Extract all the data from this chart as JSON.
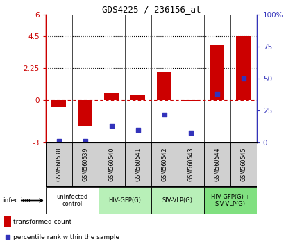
{
  "title": "GDS4225 / 236156_at",
  "samples": [
    "GSM560538",
    "GSM560539",
    "GSM560540",
    "GSM560541",
    "GSM560542",
    "GSM560543",
    "GSM560544",
    "GSM560545"
  ],
  "red_bars": [
    -0.5,
    -1.8,
    0.5,
    0.35,
    2.0,
    -0.05,
    3.85,
    4.5
  ],
  "blue_pct": [
    1.0,
    1.0,
    13.0,
    10.0,
    22.0,
    8.0,
    38.0,
    50.0
  ],
  "ylim_left": [
    -3,
    6
  ],
  "ylim_right": [
    0,
    100
  ],
  "left_yticks": [
    -3,
    0,
    2.25,
    4.5,
    6
  ],
  "left_ytick_labels": [
    "-3",
    "0",
    "2.25",
    "4.5",
    "6"
  ],
  "right_yticks": [
    0,
    25,
    50,
    75,
    100
  ],
  "right_ytick_labels": [
    "0",
    "25",
    "50",
    "75",
    "100%"
  ],
  "hline_dotted": [
    4.5,
    2.25
  ],
  "hline_dashed": 0,
  "groups": [
    {
      "label": "uninfected\ncontrol",
      "start": 0,
      "end": 1,
      "color": "#ffffff"
    },
    {
      "label": "HIV-GFP(G)",
      "start": 2,
      "end": 3,
      "color": "#b8f0b8"
    },
    {
      "label": "SIV-VLP(G)",
      "start": 4,
      "end": 5,
      "color": "#b8f0b8"
    },
    {
      "label": "HIV-GFP(G) +\nSIV-VLP(G)",
      "start": 6,
      "end": 7,
      "color": "#80e080"
    }
  ],
  "infection_label": "infection",
  "red_color": "#cc0000",
  "blue_color": "#3333bb",
  "bar_width": 0.55,
  "blue_square_size": 18,
  "sample_box_color": "#d0d0d0"
}
